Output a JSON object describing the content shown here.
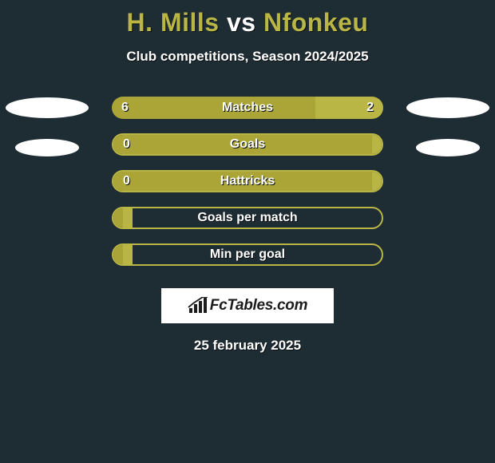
{
  "background_color": "#1e2c33",
  "text_shadow_color": "#0b0f11",
  "title": {
    "player1": "H. Mills",
    "vs": " vs ",
    "player2": "Nfonkeu",
    "player1_color": "#b9b645",
    "vs_color": "#ffffff",
    "player2_color": "#b9b645"
  },
  "subtitle": {
    "text": "Club competitions, Season 2024/2025",
    "color": "#ffffff"
  },
  "left_ellipses": [
    {
      "width": 104,
      "height": 26,
      "color": "#ffffff"
    },
    {
      "width": 80,
      "height": 22,
      "color": "#ffffff"
    }
  ],
  "right_ellipses": [
    {
      "width": 104,
      "height": 26,
      "color": "#ffffff"
    },
    {
      "width": 80,
      "height": 22,
      "color": "#ffffff"
    }
  ],
  "bars": [
    {
      "label": "Matches",
      "left_value": "6",
      "right_value": "2",
      "left_pct": 75,
      "right_pct": 25,
      "left_color": "#aaa536",
      "right_color": "#b9b645",
      "left_text_color": "#ffffff",
      "right_text_color": "#ffffff",
      "label_color": "#ffffff",
      "border_color": "#b9b645",
      "border_width": 0
    },
    {
      "label": "Goals",
      "left_value": "0",
      "right_value": "",
      "left_pct": 100,
      "right_pct": 0,
      "left_color": "#aaa536",
      "right_color": "#b9b645",
      "left_text_color": "#ffffff",
      "right_text_color": "#ffffff",
      "label_color": "#ffffff",
      "border_color": "#b9b645",
      "border_width": 2
    },
    {
      "label": "Hattricks",
      "left_value": "0",
      "right_value": "",
      "left_pct": 100,
      "right_pct": 0,
      "left_color": "#aaa536",
      "right_color": "#b9b645",
      "left_text_color": "#ffffff",
      "right_text_color": "#ffffff",
      "label_color": "#ffffff",
      "border_color": "#b9b645",
      "border_width": 2
    },
    {
      "label": "Goals per match",
      "left_value": "",
      "right_value": "",
      "left_pct": 0,
      "right_pct": 0,
      "left_color": "#aaa536",
      "right_color": "#b9b645",
      "left_text_color": "#ffffff",
      "right_text_color": "#ffffff",
      "label_color": "#ffffff",
      "border_color": "#b9b645",
      "border_width": 2
    },
    {
      "label": "Min per goal",
      "left_value": "",
      "right_value": "",
      "left_pct": 0,
      "right_pct": 0,
      "left_color": "#aaa536",
      "right_color": "#b9b645",
      "left_text_color": "#ffffff",
      "right_text_color": "#ffffff",
      "label_color": "#ffffff",
      "border_color": "#b9b645",
      "border_width": 2
    }
  ],
  "logo": {
    "box_bg": "#ffffff",
    "icon_color": "#1c1c1c",
    "text": "FcTables.com",
    "text_color": "#1c1c1c"
  },
  "date": {
    "text": "25 february 2025",
    "color": "#ffffff"
  }
}
